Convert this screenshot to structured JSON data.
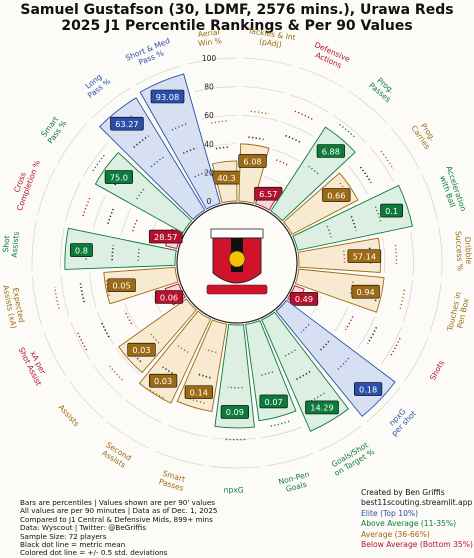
{
  "title": {
    "line1": "Samuel Gustafson (30, LDMF, 2576 mins.), Urawa Reds",
    "line2": "2025 J1 Percentile Rankings & Per 90 Values"
  },
  "colors": {
    "elite": "#2a4fa8",
    "above": "#0b7a3b",
    "average": "#9c6a14",
    "below": "#b3122e",
    "elite_fill": "#d7e0f3",
    "above_fill": "#dcefe2",
    "average_fill": "#f8ead0",
    "below_fill": "#f8d7dd",
    "background": "#fcfbf7"
  },
  "logo": "urawa-red-diamonds-crest",
  "chart_data": {
    "type": "polar-bar",
    "scale": {
      "min": 0,
      "max": 100,
      "ticks": [
        0,
        20,
        40,
        60,
        80,
        100
      ]
    },
    "metrics": [
      {
        "label": "Aerial\nWin %",
        "percentile": 28,
        "value": "40.3",
        "tier": "average"
      },
      {
        "label": "Tackles & Int\n(pAdj)",
        "percentile": 40,
        "value": "6.08",
        "tier": "average"
      },
      {
        "label": "Defensive\nActions",
        "percentile": 12,
        "value": "6.57",
        "tier": "below"
      },
      {
        "label": "Prog.\nPasses",
        "percentile": 70,
        "value": "6.88",
        "tier": "above"
      },
      {
        "label": "Prog.\nCarries",
        "percentile": 52,
        "value": "0.66",
        "tier": "average"
      },
      {
        "label": "Acceleration\nwith Ball",
        "percentile": 82,
        "value": "0.1",
        "tier": "above"
      },
      {
        "label": "Dribble\nSuccess %",
        "percentile": 57,
        "value": "57.14",
        "tier": "average"
      },
      {
        "label": "Touches in\nPen Box",
        "percentile": 60,
        "value": "0.94",
        "tier": "average"
      },
      {
        "label": "Shots",
        "percentile": 7,
        "value": "0.49",
        "tier": "below"
      },
      {
        "label": "npxG\nper shot",
        "percentile": 95,
        "value": "0.18",
        "tier": "elite"
      },
      {
        "label": "Goals/Shot\non Target %",
        "percentile": 85,
        "value": "14.29",
        "tier": "above"
      },
      {
        "label": "Non-Pen\nGoals",
        "percentile": 68,
        "value": "0.07",
        "tier": "above"
      },
      {
        "label": "npxG",
        "percentile": 72,
        "value": "0.09",
        "tier": "above"
      },
      {
        "label": "Smart\nPasses",
        "percentile": 62,
        "value": "0.14",
        "tier": "average"
      },
      {
        "label": "Second\nAssists",
        "percentile": 65,
        "value": "0.03",
        "tier": "average"
      },
      {
        "label": "Assists",
        "percentile": 58,
        "value": "0.03",
        "tier": "average"
      },
      {
        "label": "xA per\nShot Assist",
        "percentile": 10,
        "value": "0.06",
        "tier": "below"
      },
      {
        "label": "Expected\nAssists (xA)",
        "percentile": 50,
        "value": "0.05",
        "tier": "average"
      },
      {
        "label": "Shot\nAssists",
        "percentile": 77,
        "value": "0.8",
        "tier": "above"
      },
      {
        "label": "Cross\nCompletion %",
        "percentile": 8,
        "value": "28.57",
        "tier": "below"
      },
      {
        "label": "Smart\nPass %",
        "percentile": 70,
        "value": "75.0",
        "tier": "above"
      },
      {
        "label": "Long\nPass %",
        "percentile": 92,
        "value": "63.27",
        "tier": "elite"
      },
      {
        "label": "Short & Med\nPass %",
        "percentile": 94,
        "value": "93.08",
        "tier": "elite"
      }
    ]
  },
  "footer_left": [
    "Bars are percentiles | Values shown are per 90' values",
    "All values are per 90 minutes | Data as of Dec. 1, 2025",
    "Compared to J1 Central & Defensive Mids, 899+ mins",
    "Data: Wyscout | Twitter: @BeGriffis",
    "Sample Size: 72 players",
    "Black dot line = metric mean",
    "Colored dot line = +/- 0.5 std. deviations"
  ],
  "footer_right": {
    "created_by": "Created by Ben Griffis",
    "site": "best11scouting.streamlit.app",
    "legend": [
      {
        "text": "Elite (Top 10%)",
        "tier": "elite"
      },
      {
        "text": "Above Average (11-35%)",
        "tier": "above"
      },
      {
        "text": "Average (36-66%)",
        "tier": "average"
      },
      {
        "text": "Below Average (Bottom 35%)",
        "tier": "below"
      }
    ]
  }
}
